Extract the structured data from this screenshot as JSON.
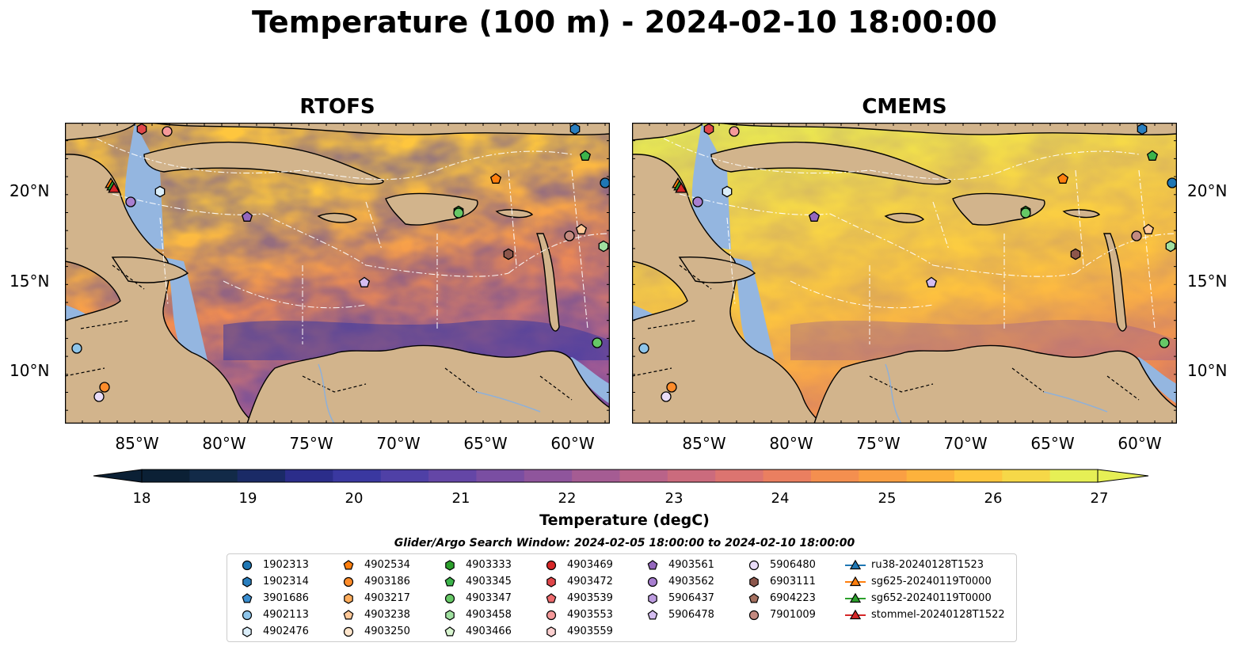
{
  "title": "Temperature (100 m) - 2024-02-10 18:00:00",
  "panels": [
    {
      "title": "RTOFS",
      "warm_extent": 0.58
    },
    {
      "title": "CMEMS",
      "warm_extent": 0.85
    }
  ],
  "lat_labels": [
    "20°N",
    "15°N",
    "10°N"
  ],
  "lon_labels": [
    "85°W",
    "80°W",
    "75°W",
    "70°W",
    "65°W",
    "60°W"
  ],
  "colorbar": {
    "ticks": [
      "18",
      "19",
      "20",
      "21",
      "22",
      "23",
      "24",
      "25",
      "26",
      "27"
    ],
    "label": "Temperature (degC)",
    "colors": [
      "#0b2035",
      "#122a48",
      "#1a2a66",
      "#2b2d8a",
      "#3a38a0",
      "#4f40a6",
      "#6446a6",
      "#7a4ea2",
      "#8f559c",
      "#a55c93",
      "#b96389",
      "#cb6b7d",
      "#dc7470",
      "#ea7f60",
      "#f48f4f",
      "#fa9f43",
      "#fdb23c",
      "#fec63e",
      "#f6d848",
      "#e6ef55"
    ]
  },
  "subtitle": "Glider/Argo Search Window: 2024-02-05 18:00:00 to 2024-02-10 18:00:00",
  "legend": [
    {
      "label": "1902313",
      "shape": "circle",
      "color": "#1f77b4"
    },
    {
      "label": "1902314",
      "shape": "hexagon",
      "color": "#2a7fbf"
    },
    {
      "label": "3901686",
      "shape": "pentagon",
      "color": "#3b8ed0"
    },
    {
      "label": "4902113",
      "shape": "circle",
      "color": "#8ec5ea"
    },
    {
      "label": "4902476",
      "shape": "hexagon",
      "color": "#dbeefa"
    },
    {
      "label": "4902534",
      "shape": "pentagon",
      "color": "#ff7f0e"
    },
    {
      "label": "4903186",
      "shape": "circle",
      "color": "#ff8c2a"
    },
    {
      "label": "4903217",
      "shape": "hexagon",
      "color": "#ffad5c"
    },
    {
      "label": "4903238",
      "shape": "pentagon",
      "color": "#ffc999"
    },
    {
      "label": "4903250",
      "shape": "circle",
      "color": "#ffe6cc"
    },
    {
      "label": "4903333",
      "shape": "hexagon",
      "color": "#2ca02c"
    },
    {
      "label": "4903345",
      "shape": "pentagon",
      "color": "#3cb44b"
    },
    {
      "label": "4903347",
      "shape": "circle",
      "color": "#66c866"
    },
    {
      "label": "4903458",
      "shape": "hexagon",
      "color": "#a0e0a0"
    },
    {
      "label": "4903466",
      "shape": "pentagon",
      "color": "#d8f5d0"
    },
    {
      "label": "4903469",
      "shape": "circle",
      "color": "#d62728"
    },
    {
      "label": "4903472",
      "shape": "hexagon",
      "color": "#e0474a"
    },
    {
      "label": "4903539",
      "shape": "pentagon",
      "color": "#ee6b6e"
    },
    {
      "label": "4903553",
      "shape": "circle",
      "color": "#f5999a"
    },
    {
      "label": "4903559",
      "shape": "hexagon",
      "color": "#fcd0d0"
    },
    {
      "label": "4903561",
      "shape": "pentagon",
      "color": "#9467bd"
    },
    {
      "label": "4903562",
      "shape": "circle",
      "color": "#a87fd0"
    },
    {
      "label": "5906437",
      "shape": "hexagon",
      "color": "#bd9ce0"
    },
    {
      "label": "5906478",
      "shape": "pentagon",
      "color": "#d4bdf0"
    },
    {
      "label": "5906480",
      "shape": "circle",
      "color": "#e9dcf8"
    },
    {
      "label": "6903111",
      "shape": "hexagon",
      "color": "#8c564b"
    },
    {
      "label": "6904223",
      "shape": "pentagon",
      "color": "#a57060"
    },
    {
      "label": "7901009",
      "shape": "circle",
      "color": "#c48a80"
    },
    {
      "label": "ru38-20240128T1523",
      "shape": "triangle-line",
      "color": "#1f77b4"
    },
    {
      "label": "sg625-20240119T0000",
      "shape": "triangle-line",
      "color": "#ff7f0e"
    },
    {
      "label": "sg652-20240119T0000",
      "shape": "triangle-line",
      "color": "#2ca02c"
    },
    {
      "label": "stommel-20240128T1522",
      "shape": "triangle-line",
      "color": "#d62728"
    }
  ],
  "colors": {
    "land": "#d2b48c",
    "shelf": "#94b6e0",
    "deep_pacific": "#0c2032"
  }
}
